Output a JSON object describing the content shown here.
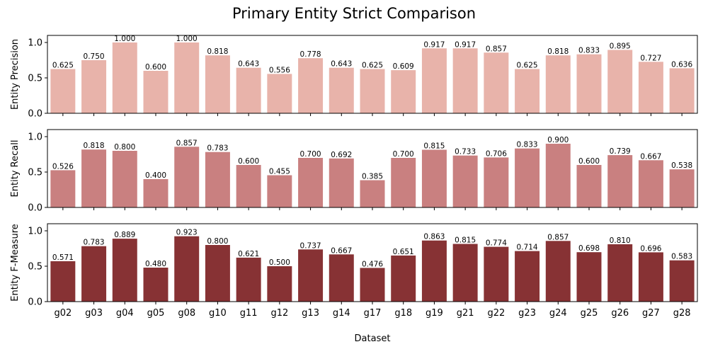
{
  "chart_data": {
    "type": "bar",
    "title": "Primary Entity Strict Comparison",
    "xlabel": "Dataset",
    "categories": [
      "g02",
      "g03",
      "g04",
      "g05",
      "g08",
      "g10",
      "g11",
      "g12",
      "g13",
      "g14",
      "g17",
      "g18",
      "g19",
      "g21",
      "g22",
      "g23",
      "g24",
      "g25",
      "g26",
      "g27",
      "g28"
    ],
    "ylim": [
      0,
      1.1
    ],
    "yticks": [
      "0.0",
      "0.5",
      "1.0"
    ],
    "grid": false,
    "panels": [
      {
        "ylabel": "Entity Precision",
        "color": "#e8b3aa",
        "values": [
          0.625,
          0.75,
          1.0,
          0.6,
          1.0,
          0.818,
          0.643,
          0.556,
          0.778,
          0.643,
          0.625,
          0.609,
          0.917,
          0.917,
          0.857,
          0.625,
          0.818,
          0.833,
          0.895,
          0.727,
          0.636
        ],
        "labels": [
          "0.625",
          "0.750",
          "1.000",
          "0.600",
          "1.000",
          "0.818",
          "0.643",
          "0.556",
          "0.778",
          "0.643",
          "0.625",
          "0.609",
          "0.917",
          "0.917",
          "0.857",
          "0.625",
          "0.818",
          "0.833",
          "0.895",
          "0.727",
          "0.636"
        ]
      },
      {
        "ylabel": "Entity Recall",
        "color": "#c98080",
        "values": [
          0.526,
          0.818,
          0.8,
          0.4,
          0.857,
          0.783,
          0.6,
          0.455,
          0.7,
          0.692,
          0.385,
          0.7,
          0.815,
          0.733,
          0.706,
          0.833,
          0.9,
          0.6,
          0.739,
          0.667,
          0.538
        ],
        "labels": [
          "0.526",
          "0.818",
          "0.800",
          "0.400",
          "0.857",
          "0.783",
          "0.600",
          "0.455",
          "0.700",
          "0.692",
          "0.385",
          "0.700",
          "0.815",
          "0.733",
          "0.706",
          "0.833",
          "0.900",
          "0.600",
          "0.739",
          "0.667",
          "0.538"
        ]
      },
      {
        "ylabel": "Entity F-Measure",
        "color": "#873234",
        "values": [
          0.571,
          0.783,
          0.889,
          0.48,
          0.923,
          0.8,
          0.621,
          0.5,
          0.737,
          0.667,
          0.476,
          0.651,
          0.863,
          0.815,
          0.774,
          0.714,
          0.857,
          0.698,
          0.81,
          0.696,
          0.583
        ],
        "labels": [
          "0.571",
          "0.783",
          "0.889",
          "0.480",
          "0.923",
          "0.800",
          "0.621",
          "0.500",
          "0.737",
          "0.667",
          "0.476",
          "0.651",
          "0.863",
          "0.815",
          "0.774",
          "0.714",
          "0.857",
          "0.698",
          "0.810",
          "0.696",
          "0.583"
        ]
      }
    ]
  }
}
